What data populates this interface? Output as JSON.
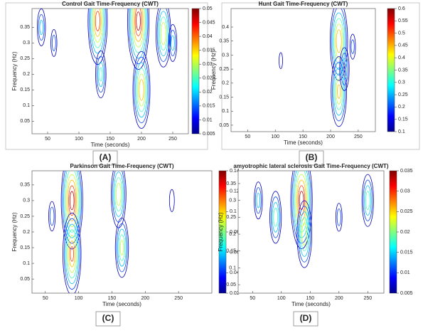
{
  "chart_data": [
    {
      "type": "contour",
      "title": "Control Gait Time-Frequency (CWT)",
      "x_label": "Time (seconds)",
      "y_label": "Frequency (Hz)",
      "caption": "(A)",
      "xlim": [
        25,
        275
      ],
      "xticks": [
        50,
        100,
        150,
        200,
        250
      ],
      "ylim": [
        0.01,
        0.41
      ],
      "yticks": [
        0.05,
        0.1,
        0.15,
        0.2,
        0.25,
        0.3,
        0.35
      ],
      "clim": [
        0.005,
        0.05
      ],
      "cticks": [
        0.005,
        0.01,
        0.015,
        0.02,
        0.025,
        0.03,
        0.035,
        0.04,
        0.045,
        0.05
      ],
      "x": [
        40,
        60,
        130,
        135,
        195,
        200,
        235,
        250
      ],
      "y": [
        0.35,
        0.3,
        0.37,
        0.2,
        0.37,
        0.15,
        0.33,
        0.3
      ],
      "values": [
        0.02,
        0.015,
        0.045,
        0.025,
        0.05,
        0.04,
        0.035,
        0.02
      ]
    },
    {
      "type": "contour",
      "title": "Hunt Gait Time-Frequency (CWT)",
      "x_label": "Time (seconds)",
      "y_label": "Frequency (Hz)",
      "caption": "(B)",
      "xlim": [
        20,
        281
      ],
      "xticks": [
        50,
        100,
        150,
        200,
        250
      ],
      "ylim": [
        0.027,
        0.466
      ],
      "yticks": [
        0.05,
        0.1,
        0.15,
        0.2,
        0.25,
        0.3,
        0.35,
        0.4
      ],
      "clim": [
        0.1,
        0.6
      ],
      "cticks": [
        0.1,
        0.15,
        0.2,
        0.25,
        0.3,
        0.35,
        0.4,
        0.45,
        0.5,
        0.55,
        0.6
      ],
      "x": [
        215,
        215,
        225,
        240,
        110
      ],
      "y": [
        0.35,
        0.17,
        0.25,
        0.33,
        0.28
      ],
      "values": [
        0.5,
        0.45,
        0.3,
        0.2,
        0.15
      ]
    },
    {
      "type": "contour",
      "title": "Parkinson Gait Time-Frequency (CWT)",
      "x_label": "Time (seconds)",
      "y_label": "Frequency (Hz)",
      "caption": "(C)",
      "xlim": [
        30,
        300
      ],
      "xticks": [
        50,
        100,
        150,
        200,
        250
      ],
      "ylim": [
        0.005,
        0.395
      ],
      "yticks": [
        0.05,
        0.1,
        0.15,
        0.2,
        0.25,
        0.3,
        0.35
      ],
      "clim": [
        0.02,
        0.14
      ],
      "cticks": [
        0.02,
        0.04,
        0.06,
        0.08,
        0.1,
        0.12,
        0.14
      ],
      "x": [
        90,
        90,
        160,
        165,
        60,
        240
      ],
      "y": [
        0.3,
        0.13,
        0.32,
        0.15,
        0.25,
        0.3
      ],
      "values": [
        0.14,
        0.12,
        0.1,
        0.09,
        0.05,
        0.04
      ]
    },
    {
      "type": "contour",
      "title": "amyotrophic lateral sclerosis Gait Time-Frequency (CWT)",
      "x_label": "Time (seconds)",
      "y_label": "Frequency (Hz)",
      "caption": "(D)",
      "xlim": [
        25,
        278
      ],
      "xticks": [
        50,
        100,
        150,
        200,
        250
      ],
      "ylim": [
        0.025,
        0.388
      ],
      "yticks": [
        0.05,
        0.1,
        0.15,
        0.2,
        0.25,
        0.3,
        0.35
      ],
      "clim": [
        0.005,
        0.035
      ],
      "cticks": [
        0.005,
        0.01,
        0.015,
        0.02,
        0.025,
        0.03,
        0.035
      ],
      "x": [
        135,
        140,
        90,
        250,
        60,
        200
      ],
      "y": [
        0.3,
        0.2,
        0.25,
        0.3,
        0.3,
        0.25
      ],
      "values": [
        0.035,
        0.025,
        0.02,
        0.02,
        0.015,
        0.012
      ]
    }
  ]
}
